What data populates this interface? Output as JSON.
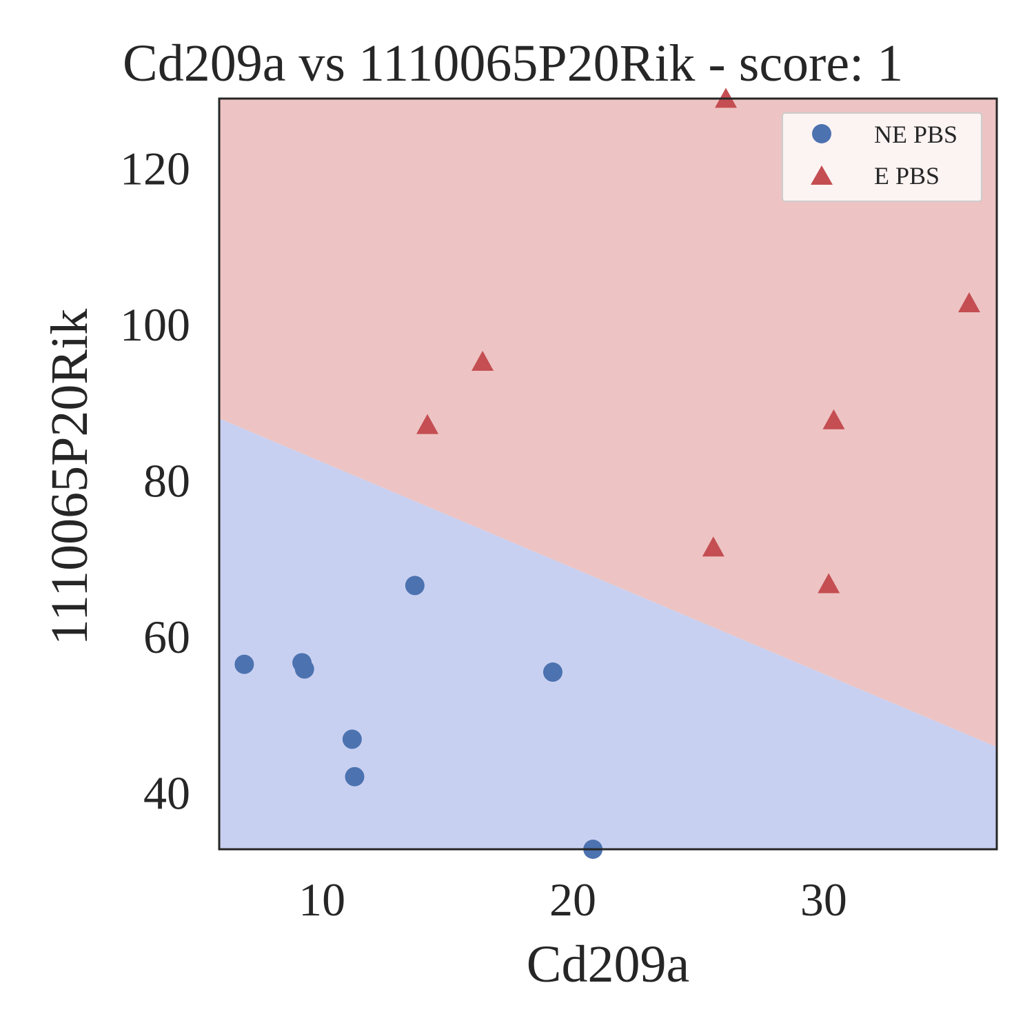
{
  "chart_data": {
    "type": "scatter",
    "title": "Cd209a vs 1110065P20Rik - score: 1",
    "xlabel": "Cd209a",
    "ylabel": "1110065P20Rik",
    "xlim": [
      5.9,
      36.9
    ],
    "ylim": [
      32.7,
      128.9
    ],
    "xticks": [
      10,
      20,
      30
    ],
    "yticks": [
      40,
      60,
      80,
      100,
      120
    ],
    "grid": false,
    "legend_position": "top-right",
    "decision_boundary": {
      "points": [
        [
          5.9,
          87.9
        ],
        [
          36.9,
          45.8
        ]
      ],
      "below_class": "NE PBS",
      "above_class": "E PBS"
    },
    "region_colors": {
      "NE PBS": "#c8d0f1",
      "E PBS": "#edc4c3"
    },
    "series": [
      {
        "name": "NE PBS",
        "marker": "circle",
        "color": "#4c72b0",
        "points": [
          [
            6.9,
            56.4
          ],
          [
            9.2,
            56.6
          ],
          [
            9.3,
            55.8
          ],
          [
            11.2,
            46.8
          ],
          [
            11.3,
            42.0
          ],
          [
            13.7,
            66.5
          ],
          [
            19.2,
            55.4
          ],
          [
            20.8,
            32.7
          ]
        ]
      },
      {
        "name": "E PBS",
        "marker": "triangle",
        "color": "#c44e52",
        "points": [
          [
            14.2,
            86.8
          ],
          [
            16.4,
            94.9
          ],
          [
            25.6,
            71.1
          ],
          [
            26.1,
            128.6
          ],
          [
            30.2,
            66.4
          ],
          [
            30.4,
            87.4
          ],
          [
            35.8,
            102.4
          ]
        ]
      }
    ]
  }
}
